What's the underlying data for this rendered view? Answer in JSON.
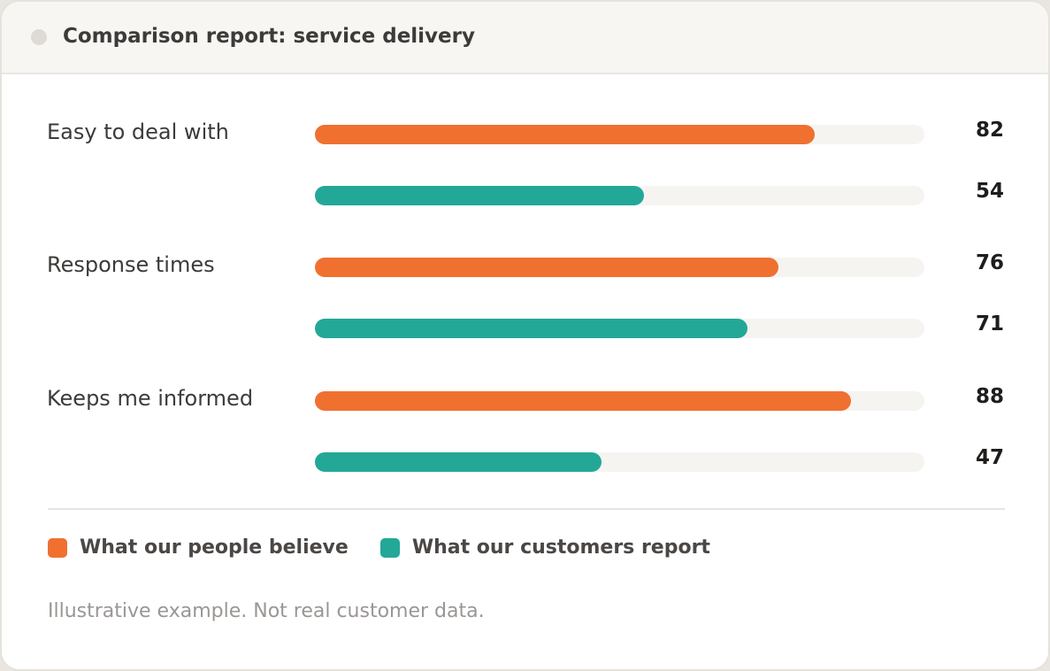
{
  "header": {
    "title": "Comparison report: service delivery"
  },
  "chart_data": {
    "type": "bar",
    "orientation": "horizontal",
    "categories": [
      "Easy to deal with",
      "Response times",
      "Keeps me informed"
    ],
    "series": [
      {
        "name": "What our people believe",
        "values": [
          82,
          76,
          88
        ],
        "color": "#f07030"
      },
      {
        "name": "What our customers report",
        "values": [
          54,
          71,
          47
        ],
        "color": "#23a897"
      }
    ],
    "xlim": [
      0,
      100
    ],
    "grid": false,
    "legend": "bottom-left"
  },
  "legend": {
    "items": [
      {
        "label": "What our people believe",
        "color": "#f07030"
      },
      {
        "label": "What our customers report",
        "color": "#23a897"
      }
    ]
  },
  "footnote": "Illustrative example. Not real customer data."
}
